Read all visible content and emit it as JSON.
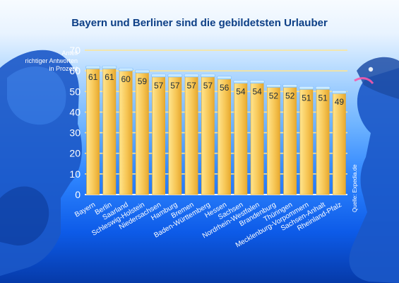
{
  "chart_data": {
    "type": "bar",
    "title": "Bayern und Berliner sind die gebildetsten Urlauber",
    "ylabel_lines": [
      "Anteil",
      "richtiger Antworten",
      "in Prozent"
    ],
    "ylim": [
      0,
      70
    ],
    "yticks": [
      0,
      10,
      20,
      30,
      40,
      50,
      60,
      70
    ],
    "categories": [
      "Bayern",
      "Berlin",
      "Saarland",
      "Schleswig-Holstein",
      "Niedersachsen",
      "Hamburg",
      "Bremen",
      "Baden-Württemberg",
      "Hessen",
      "Sachsen",
      "Nordrhein-Westfalen",
      "Brandenburg",
      "Thüringen",
      "Mecklenburg-Vorpommern",
      "Sachsen-Anhalt",
      "Rheinland-Pfalz"
    ],
    "values": [
      61,
      61,
      60,
      59,
      57,
      57,
      57,
      57,
      56,
      54,
      54,
      52,
      52,
      51,
      51,
      49
    ],
    "bar_color": "#f7c757",
    "grid": true,
    "source": "Quelle: Expedia.de"
  }
}
